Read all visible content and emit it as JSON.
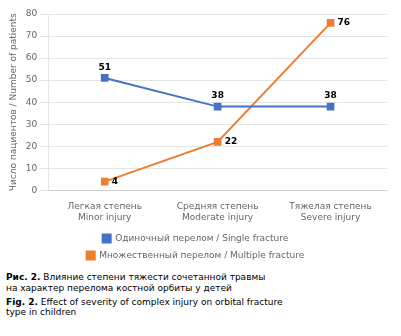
{
  "chart_data": {
    "type": "line",
    "categories": [
      "Легкая степень\nMinor injury",
      "Средняя степень\nModerate injury",
      "Тяжелая степень\nSevere injury"
    ],
    "series": [
      {
        "name": "Одиночный перелом / Single fracture",
        "color": "#4472C4",
        "marker": "square",
        "values": [
          51,
          38,
          38
        ]
      },
      {
        "name": "Множественный перелом / Multiple fracture",
        "color": "#ED7D31",
        "marker": "square",
        "values": [
          4,
          22,
          76
        ]
      }
    ],
    "ylabel": "Число пациентов / Number of patients",
    "ylim": [
      0,
      80
    ],
    "yticks": [
      0,
      10,
      20,
      30,
      40,
      50,
      60,
      70,
      80
    ],
    "grid": true,
    "legend": "bottom",
    "data_labels": true,
    "annotations": [
      "Рис. 2. Влияние степени тяжести сочетанной травмы\nна характер перелома костной орбиты у детей",
      "Fig. 2. Effect of severity of complex injury on orbital fracture\ntype in children"
    ]
  }
}
